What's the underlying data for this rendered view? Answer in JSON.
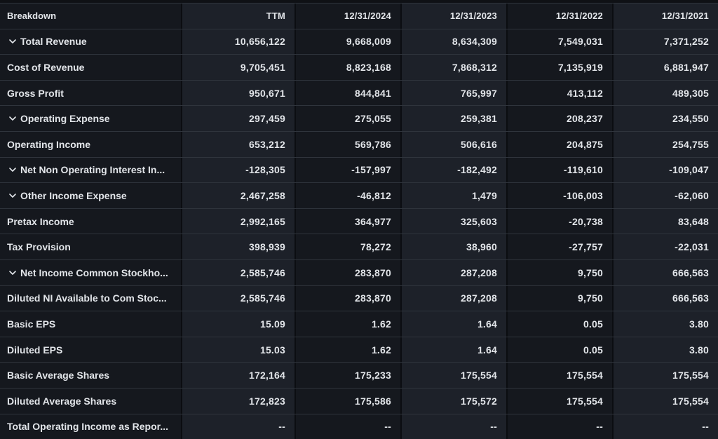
{
  "colors": {
    "background": "#0F1115",
    "column_dark": "#15181E",
    "column_light": "#1D2129",
    "row_border": "#2F343C",
    "column_border": "#0B0D11",
    "text": "#E2E5E9"
  },
  "icons": {
    "row_expander": "chevron-down"
  },
  "table": {
    "columns": [
      "Breakdown",
      "TTM",
      "12/31/2024",
      "12/31/2023",
      "12/31/2022",
      "12/31/2021"
    ],
    "rows": [
      {
        "label": "Total Revenue",
        "expandable": true,
        "values": [
          "10,656,122",
          "9,668,009",
          "8,634,309",
          "7,549,031",
          "7,371,252"
        ]
      },
      {
        "label": "Cost of Revenue",
        "expandable": false,
        "values": [
          "9,705,451",
          "8,823,168",
          "7,868,312",
          "7,135,919",
          "6,881,947"
        ]
      },
      {
        "label": "Gross Profit",
        "expandable": false,
        "values": [
          "950,671",
          "844,841",
          "765,997",
          "413,112",
          "489,305"
        ]
      },
      {
        "label": "Operating Expense",
        "expandable": true,
        "values": [
          "297,459",
          "275,055",
          "259,381",
          "208,237",
          "234,550"
        ]
      },
      {
        "label": "Operating Income",
        "expandable": false,
        "values": [
          "653,212",
          "569,786",
          "506,616",
          "204,875",
          "254,755"
        ]
      },
      {
        "label": "Net Non Operating Interest In...",
        "expandable": true,
        "values": [
          "-128,305",
          "-157,997",
          "-182,492",
          "-119,610",
          "-109,047"
        ]
      },
      {
        "label": "Other Income Expense",
        "expandable": true,
        "values": [
          "2,467,258",
          "-46,812",
          "1,479",
          "-106,003",
          "-62,060"
        ]
      },
      {
        "label": "Pretax Income",
        "expandable": false,
        "values": [
          "2,992,165",
          "364,977",
          "325,603",
          "-20,738",
          "83,648"
        ]
      },
      {
        "label": "Tax Provision",
        "expandable": false,
        "values": [
          "398,939",
          "78,272",
          "38,960",
          "-27,757",
          "-22,031"
        ]
      },
      {
        "label": "Net Income Common Stockho...",
        "expandable": true,
        "values": [
          "2,585,746",
          "283,870",
          "287,208",
          "9,750",
          "666,563"
        ]
      },
      {
        "label": "Diluted NI Available to Com Stoc...",
        "expandable": false,
        "values": [
          "2,585,746",
          "283,870",
          "287,208",
          "9,750",
          "666,563"
        ]
      },
      {
        "label": "Basic EPS",
        "expandable": false,
        "values": [
          "15.09",
          "1.62",
          "1.64",
          "0.05",
          "3.80"
        ]
      },
      {
        "label": "Diluted EPS",
        "expandable": false,
        "values": [
          "15.03",
          "1.62",
          "1.64",
          "0.05",
          "3.80"
        ]
      },
      {
        "label": "Basic Average Shares",
        "expandable": false,
        "values": [
          "172,164",
          "175,233",
          "175,554",
          "175,554",
          "175,554"
        ]
      },
      {
        "label": "Diluted Average Shares",
        "expandable": false,
        "values": [
          "172,823",
          "175,586",
          "175,572",
          "175,554",
          "175,554"
        ]
      },
      {
        "label": "Total Operating Income as Repor...",
        "expandable": false,
        "values": [
          "--",
          "--",
          "--",
          "--",
          "--"
        ]
      }
    ]
  }
}
